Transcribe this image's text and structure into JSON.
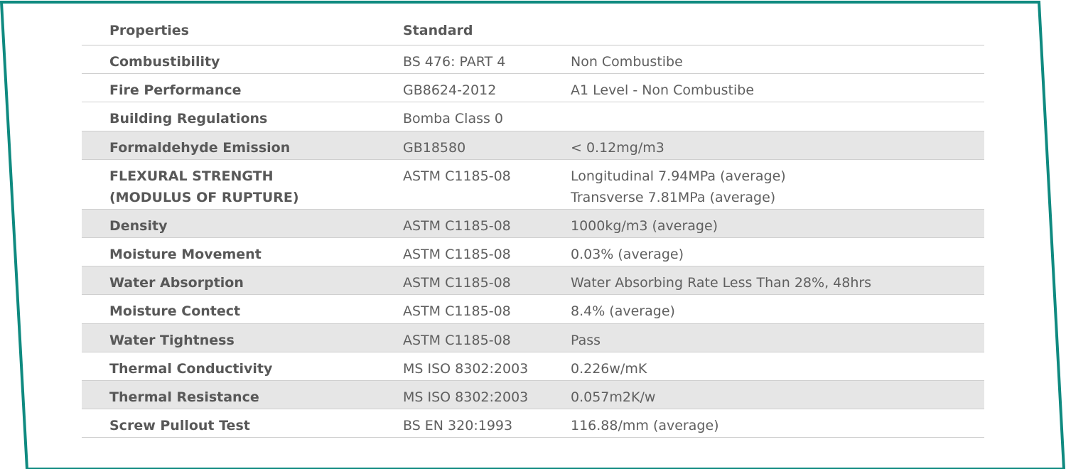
{
  "table": {
    "headers": {
      "properties": "Properties",
      "standard": "Standard"
    },
    "rows": [
      {
        "property": [
          "Combustibility"
        ],
        "standard": "BS 476: PART 4",
        "value": [
          "Non Combustibe"
        ],
        "shaded": false
      },
      {
        "property": [
          "Fire Performance"
        ],
        "standard": "GB8624-2012",
        "value": [
          "A1 Level - Non Combustibe"
        ],
        "shaded": false
      },
      {
        "property": [
          "Building Regulations"
        ],
        "standard": "Bomba Class 0",
        "value": [],
        "shaded": false
      },
      {
        "property": [
          "Formaldehyde Emission"
        ],
        "standard": "GB18580",
        "value": [
          "< 0.12mg/m3"
        ],
        "shaded": true
      },
      {
        "property": [
          "FLEXURAL STRENGTH",
          "(MODULUS OF RUPTURE)"
        ],
        "standard": "ASTM C1185-08",
        "value": [
          "Longitudinal 7.94MPa (average)",
          "Transverse 7.81MPa (average)"
        ],
        "shaded": false
      },
      {
        "property": [
          "Density"
        ],
        "standard": "ASTM C1185-08",
        "value": [
          "1000kg/m3 (average)"
        ],
        "shaded": true
      },
      {
        "property": [
          "Moisture Movement"
        ],
        "standard": "ASTM C1185-08",
        "value": [
          "0.03% (average)"
        ],
        "shaded": false
      },
      {
        "property": [
          "Water Absorption"
        ],
        "standard": "ASTM C1185-08",
        "value": [
          "Water Absorbing Rate Less Than 28%, 48hrs"
        ],
        "shaded": true
      },
      {
        "property": [
          "Moisture Contect"
        ],
        "standard": "ASTM C1185-08",
        "value": [
          "8.4% (average)"
        ],
        "shaded": false
      },
      {
        "property": [
          "Water Tightness"
        ],
        "standard": "ASTM C1185-08",
        "value": [
          "Pass"
        ],
        "shaded": true
      },
      {
        "property": [
          "Thermal Conductivity"
        ],
        "standard": "MS ISO 8302:2003",
        "value": [
          "0.226w/mK"
        ],
        "shaded": false
      },
      {
        "property": [
          "Thermal Resistance"
        ],
        "standard": "MS ISO 8302:2003",
        "value": [
          "0.057m2K/w"
        ],
        "shaded": true
      },
      {
        "property": [
          "Screw Pullout Test"
        ],
        "standard": "BS EN 320:1993",
        "value": [
          "116.88/mm (average)"
        ],
        "shaded": false
      }
    ]
  },
  "colors": {
    "frame": "#0f8a80",
    "shade": "#e6e6e6",
    "text": "#5f5f5f"
  }
}
